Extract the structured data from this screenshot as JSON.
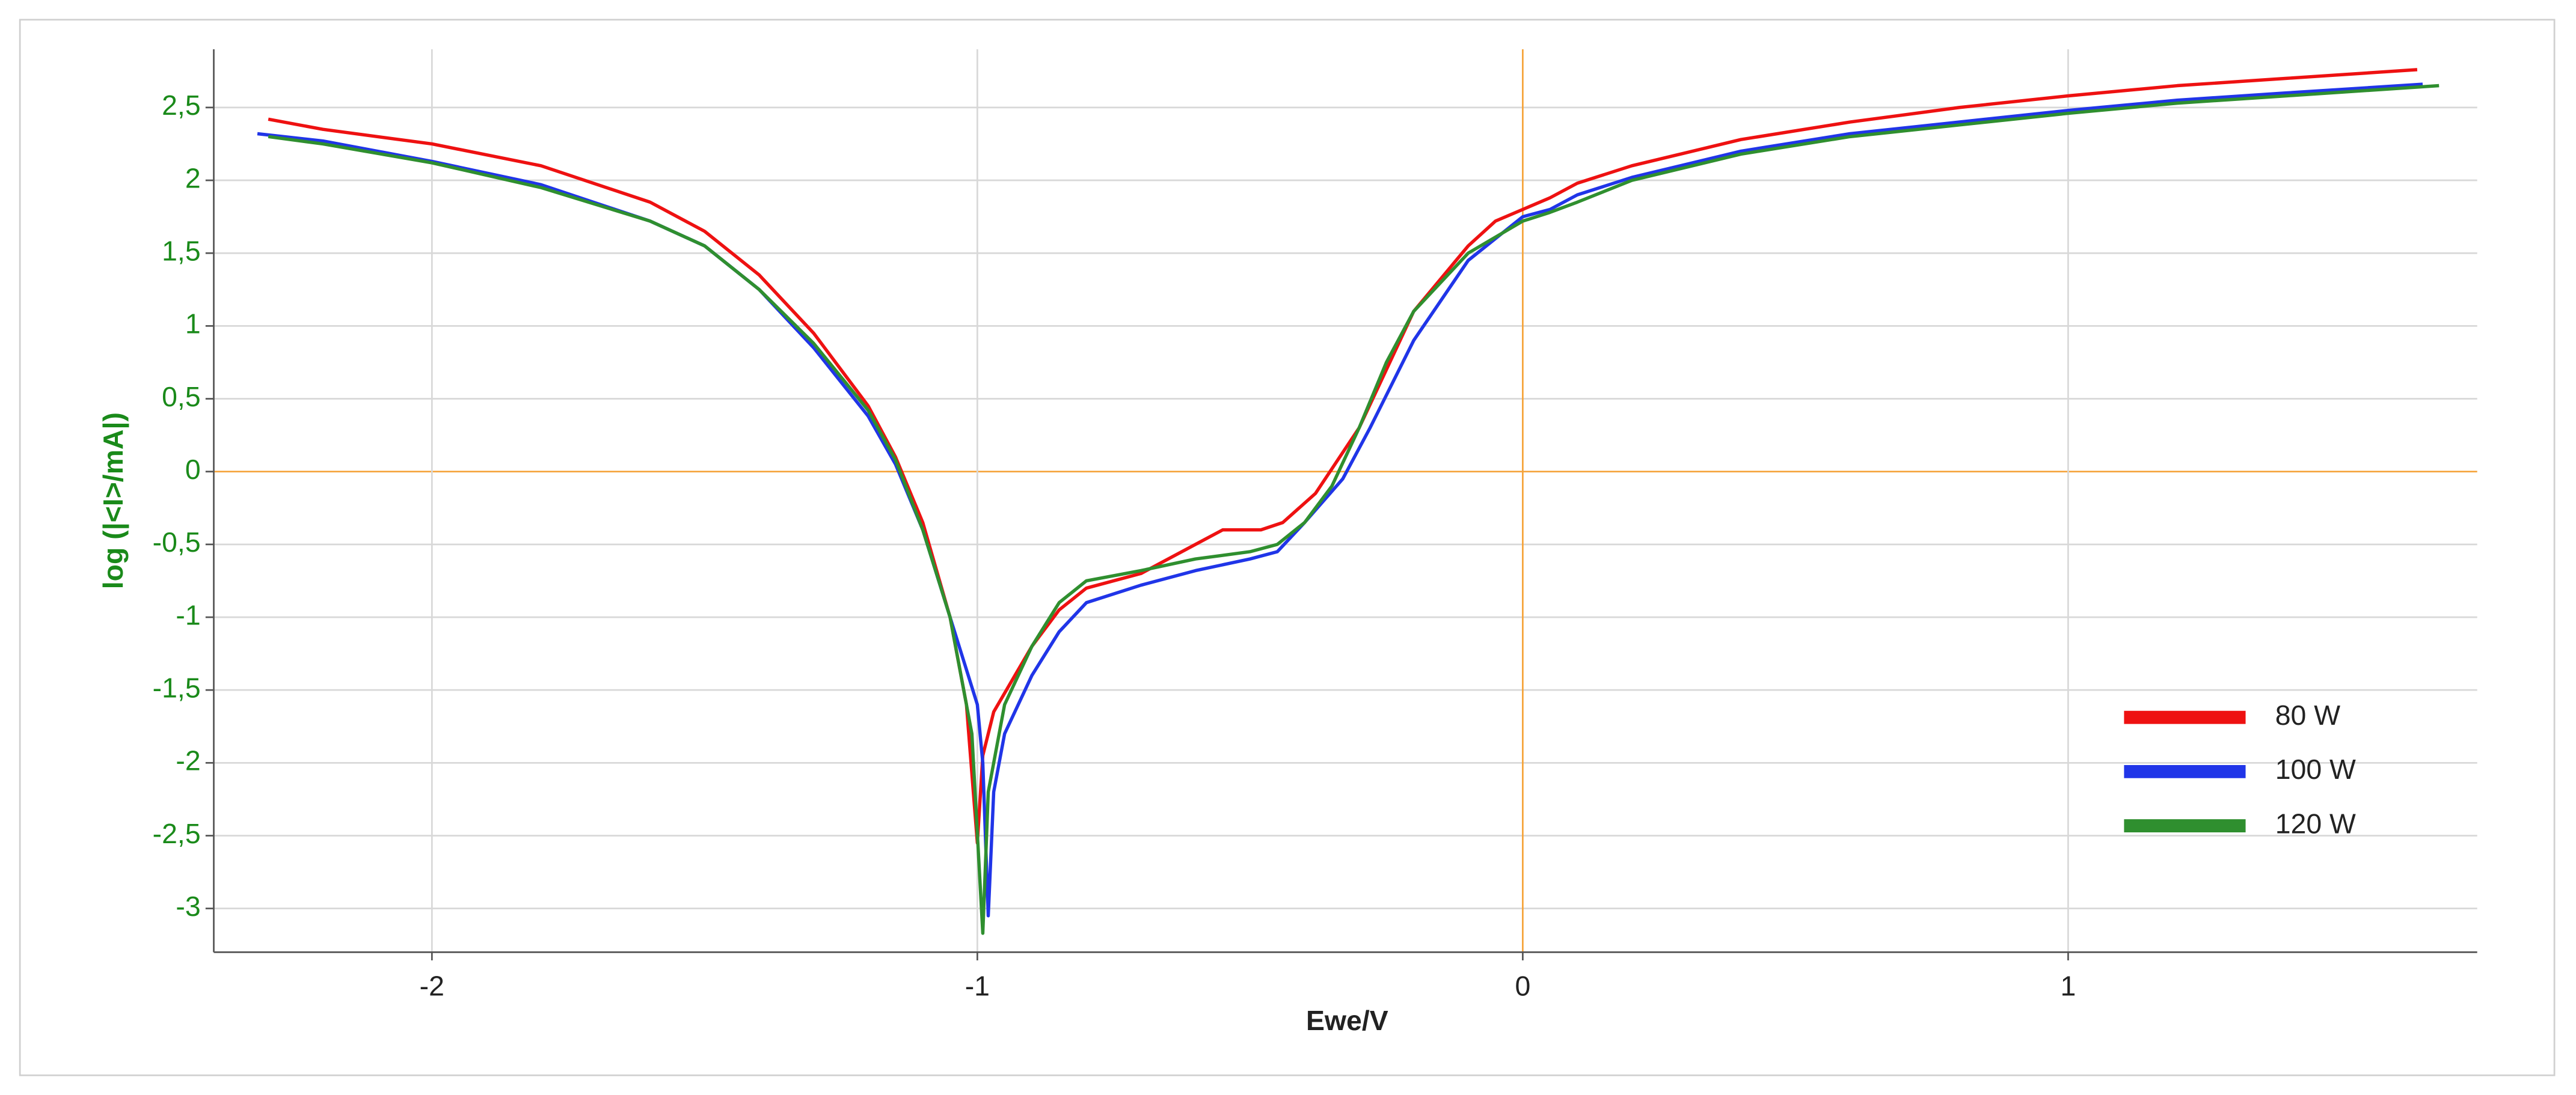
{
  "chart_data": {
    "type": "line",
    "x_label": "Ewe/V",
    "y_label": "log (|<I>/mA|)",
    "xlim": [
      -2.4,
      1.75
    ],
    "ylim": [
      -3.3,
      2.9
    ],
    "xticks": [
      -2,
      -1,
      0,
      1
    ],
    "yticks": [
      -3,
      {
        "value": -2.5,
        "label": "-2,5"
      },
      -2,
      {
        "value": -1.5,
        "label": "-1,5"
      },
      -1,
      {
        "value": -0.5,
        "label": "-0,5"
      },
      0,
      {
        "value": 0.5,
        "label": "0,5"
      },
      1,
      {
        "value": 1.5,
        "label": "1,5"
      },
      2,
      {
        "value": 2.5,
        "label": "2,5"
      }
    ],
    "grid": true,
    "zero_line_color": "#f5a33a",
    "legend": "lower right",
    "series": [
      {
        "name": "80 W",
        "color": "#ee1111",
        "x": [
          -2.3,
          -2.2,
          -2.0,
          -1.8,
          -1.6,
          -1.5,
          -1.4,
          -1.3,
          -1.2,
          -1.15,
          -1.1,
          -1.05,
          -1.02,
          -1.0,
          -0.99,
          -0.97,
          -0.9,
          -0.85,
          -0.8,
          -0.7,
          -0.6,
          -0.55,
          -0.48,
          -0.44,
          -0.38,
          -0.3,
          -0.25,
          -0.2,
          -0.1,
          -0.05,
          0,
          0.05,
          0.1,
          0.2,
          0.4,
          0.6,
          0.8,
          1.0,
          1.2,
          1.4,
          1.64
        ],
        "values": [
          2.42,
          2.35,
          2.25,
          2.1,
          1.85,
          1.65,
          1.35,
          0.95,
          0.45,
          0.1,
          -0.35,
          -1.0,
          -1.6,
          -2.55,
          -1.95,
          -1.65,
          -1.2,
          -0.95,
          -0.8,
          -0.7,
          -0.5,
          -0.4,
          -0.4,
          -0.35,
          -0.15,
          0.3,
          0.7,
          1.1,
          1.55,
          1.72,
          1.8,
          1.88,
          1.98,
          2.1,
          2.28,
          2.4,
          2.5,
          2.58,
          2.65,
          2.7,
          2.76
        ]
      },
      {
        "name": "100 W",
        "color": "#2035e8",
        "x": [
          -2.32,
          -2.2,
          -2.0,
          -1.8,
          -1.6,
          -1.5,
          -1.4,
          -1.3,
          -1.2,
          -1.15,
          -1.1,
          -1.05,
          -1.0,
          -0.99,
          -0.98,
          -0.97,
          -0.95,
          -0.9,
          -0.85,
          -0.8,
          -0.7,
          -0.6,
          -0.5,
          -0.45,
          -0.4,
          -0.33,
          -0.28,
          -0.2,
          -0.1,
          0,
          0.05,
          0.1,
          0.2,
          0.4,
          0.6,
          0.8,
          1.0,
          1.2,
          1.4,
          1.65
        ],
        "values": [
          2.32,
          2.27,
          2.13,
          1.97,
          1.72,
          1.55,
          1.25,
          0.85,
          0.38,
          0.05,
          -0.4,
          -1.0,
          -1.6,
          -2.0,
          -3.05,
          -2.2,
          -1.8,
          -1.4,
          -1.1,
          -0.9,
          -0.78,
          -0.68,
          -0.6,
          -0.55,
          -0.35,
          -0.05,
          0.3,
          0.9,
          1.45,
          1.75,
          1.8,
          1.9,
          2.02,
          2.2,
          2.32,
          2.4,
          2.48,
          2.55,
          2.6,
          2.66
        ]
      },
      {
        "name": "120 W",
        "color": "#2f8f2f",
        "x": [
          -2.3,
          -2.2,
          -2.0,
          -1.8,
          -1.6,
          -1.5,
          -1.4,
          -1.3,
          -1.2,
          -1.15,
          -1.1,
          -1.05,
          -1.01,
          -0.99,
          -0.98,
          -0.95,
          -0.9,
          -0.85,
          -0.8,
          -0.7,
          -0.6,
          -0.5,
          -0.45,
          -0.4,
          -0.35,
          -0.3,
          -0.25,
          -0.2,
          -0.1,
          0,
          0.05,
          0.1,
          0.2,
          0.4,
          0.6,
          0.8,
          1.0,
          1.2,
          1.4,
          1.68
        ],
        "values": [
          2.3,
          2.25,
          2.12,
          1.95,
          1.72,
          1.55,
          1.25,
          0.88,
          0.42,
          0.08,
          -0.4,
          -1.0,
          -1.8,
          -3.17,
          -2.2,
          -1.6,
          -1.2,
          -0.9,
          -0.75,
          -0.68,
          -0.6,
          -0.55,
          -0.5,
          -0.35,
          -0.1,
          0.3,
          0.75,
          1.1,
          1.5,
          1.72,
          1.78,
          1.85,
          2.0,
          2.18,
          2.3,
          2.38,
          2.46,
          2.53,
          2.58,
          2.65
        ]
      }
    ]
  }
}
